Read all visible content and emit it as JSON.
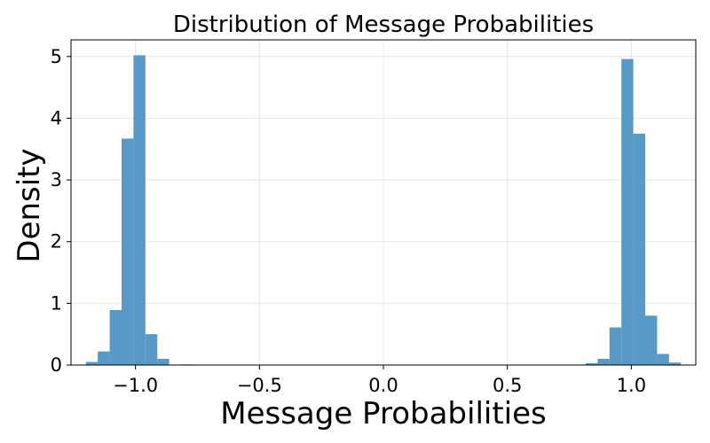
{
  "chart_data": {
    "type": "bar",
    "title": "Distribution of Message Probabilities",
    "xlabel": "Message Probabilities",
    "ylabel": "Density",
    "xlim": [
      -1.26,
      1.26
    ],
    "ylim": [
      0,
      5.27
    ],
    "xticks": [
      {
        "value": -1.0,
        "label": "−1.0"
      },
      {
        "value": -0.5,
        "label": "−0.5"
      },
      {
        "value": 0.0,
        "label": "0.0"
      },
      {
        "value": 0.5,
        "label": "0.5"
      },
      {
        "value": 1.0,
        "label": "1.0"
      }
    ],
    "yticks": [
      {
        "value": 0,
        "label": "0"
      },
      {
        "value": 1,
        "label": "1"
      },
      {
        "value": 2,
        "label": "2"
      },
      {
        "value": 3,
        "label": "3"
      },
      {
        "value": 4,
        "label": "4"
      },
      {
        "value": 5,
        "label": "5"
      }
    ],
    "grid": true,
    "bar_color": "#5799c7",
    "bin_width": 0.048,
    "bins": [
      {
        "x0": -1.2,
        "value": 0.05
      },
      {
        "x0": -1.152,
        "value": 0.22
      },
      {
        "x0": -1.104,
        "value": 0.89
      },
      {
        "x0": -1.056,
        "value": 3.67
      },
      {
        "x0": -1.008,
        "value": 5.02
      },
      {
        "x0": -0.96,
        "value": 0.5
      },
      {
        "x0": -0.912,
        "value": 0.1
      },
      {
        "x0": -0.816,
        "value": 0.01
      },
      {
        "x0": 0.816,
        "value": 0.03
      },
      {
        "x0": 0.864,
        "value": 0.1
      },
      {
        "x0": 0.912,
        "value": 0.61
      },
      {
        "x0": 0.96,
        "value": 4.96
      },
      {
        "x0": 1.008,
        "value": 3.75
      },
      {
        "x0": 1.056,
        "value": 0.8
      },
      {
        "x0": 1.104,
        "value": 0.18
      },
      {
        "x0": 1.152,
        "value": 0.04
      }
    ]
  }
}
